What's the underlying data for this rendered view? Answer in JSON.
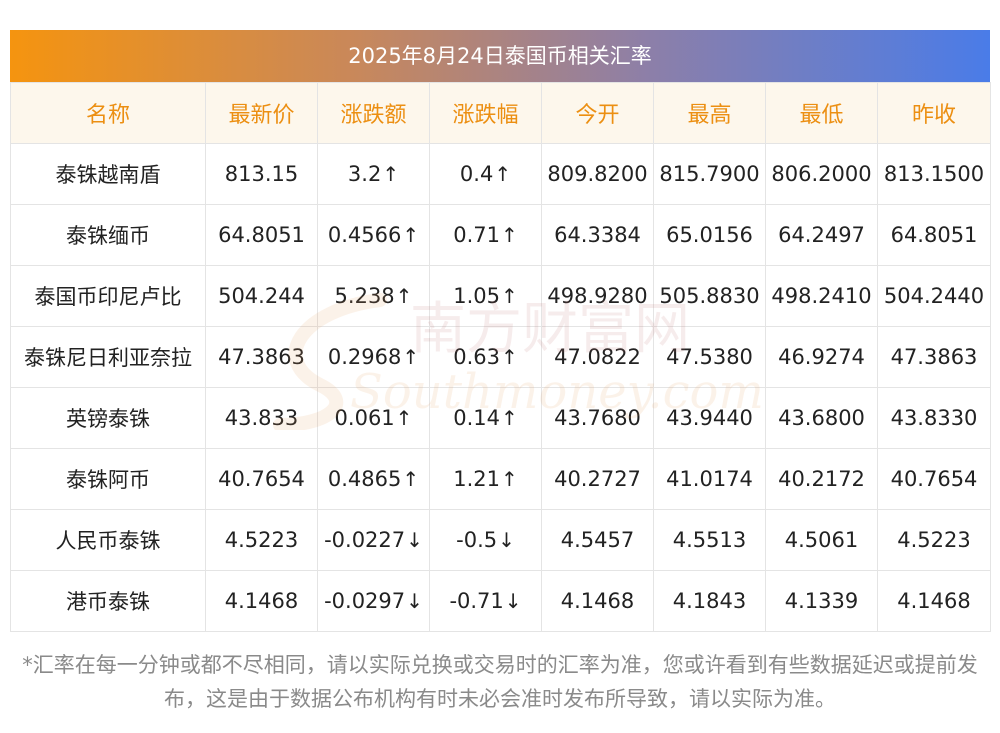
{
  "title": "2025年8月24日泰国币相关汇率",
  "headers": [
    "名称",
    "最新价",
    "涨跌额",
    "涨跌幅",
    "今开",
    "最高",
    "最低",
    "昨收"
  ],
  "rows": [
    {
      "name": "泰铢越南盾",
      "latest": "813.15",
      "change": "3.2",
      "pct": "0.4",
      "dir": "up",
      "open": "809.8200",
      "high": "815.7900",
      "low": "806.2000",
      "prev": "813.1500"
    },
    {
      "name": "泰铢缅币",
      "latest": "64.8051",
      "change": "0.4566",
      "pct": "0.71",
      "dir": "up",
      "open": "64.3384",
      "high": "65.0156",
      "low": "64.2497",
      "prev": "64.8051"
    },
    {
      "name": "泰国币印尼卢比",
      "latest": "504.244",
      "change": "5.238",
      "pct": "1.05",
      "dir": "up",
      "open": "498.9280",
      "high": "505.8830",
      "low": "498.2410",
      "prev": "504.2440"
    },
    {
      "name": "泰铢尼日利亚奈拉",
      "latest": "47.3863",
      "change": "0.2968",
      "pct": "0.63",
      "dir": "up",
      "open": "47.0822",
      "high": "47.5380",
      "low": "46.9274",
      "prev": "47.3863"
    },
    {
      "name": "英镑泰铢",
      "latest": "43.833",
      "change": "0.061",
      "pct": "0.14",
      "dir": "up",
      "open": "43.7680",
      "high": "43.9440",
      "low": "43.6800",
      "prev": "43.8330"
    },
    {
      "name": "泰铢阿币",
      "latest": "40.7654",
      "change": "0.4865",
      "pct": "1.21",
      "dir": "up",
      "open": "40.2727",
      "high": "41.0174",
      "low": "40.2172",
      "prev": "40.7654"
    },
    {
      "name": "人民币泰铢",
      "latest": "4.5223",
      "change": "-0.0227",
      "pct": "-0.5",
      "dir": "down",
      "open": "4.5457",
      "high": "4.5513",
      "low": "4.5061",
      "prev": "4.5223"
    },
    {
      "name": "港币泰铢",
      "latest": "4.1468",
      "change": "-0.0297",
      "pct": "-0.71",
      "dir": "down",
      "open": "4.1468",
      "high": "4.1843",
      "low": "4.1339",
      "prev": "4.1468"
    }
  ],
  "arrows": {
    "up": "↑",
    "down": "↓"
  },
  "watermark": {
    "cn": "南方财富网",
    "en": "Southmoney.com"
  },
  "note": "*汇率在每一分钟或都不尽相同，请以实际兑换或交易时的汇率为准，您或许看到有些数据延迟或提前发布，这是由于数据公布机构有时未必会准时发布所导致，请以实际为准。",
  "colors": {
    "up": "#e8161a",
    "down": "#158a1e",
    "header_text": "#ec8f12",
    "header_bg": "#fdf7ec"
  }
}
